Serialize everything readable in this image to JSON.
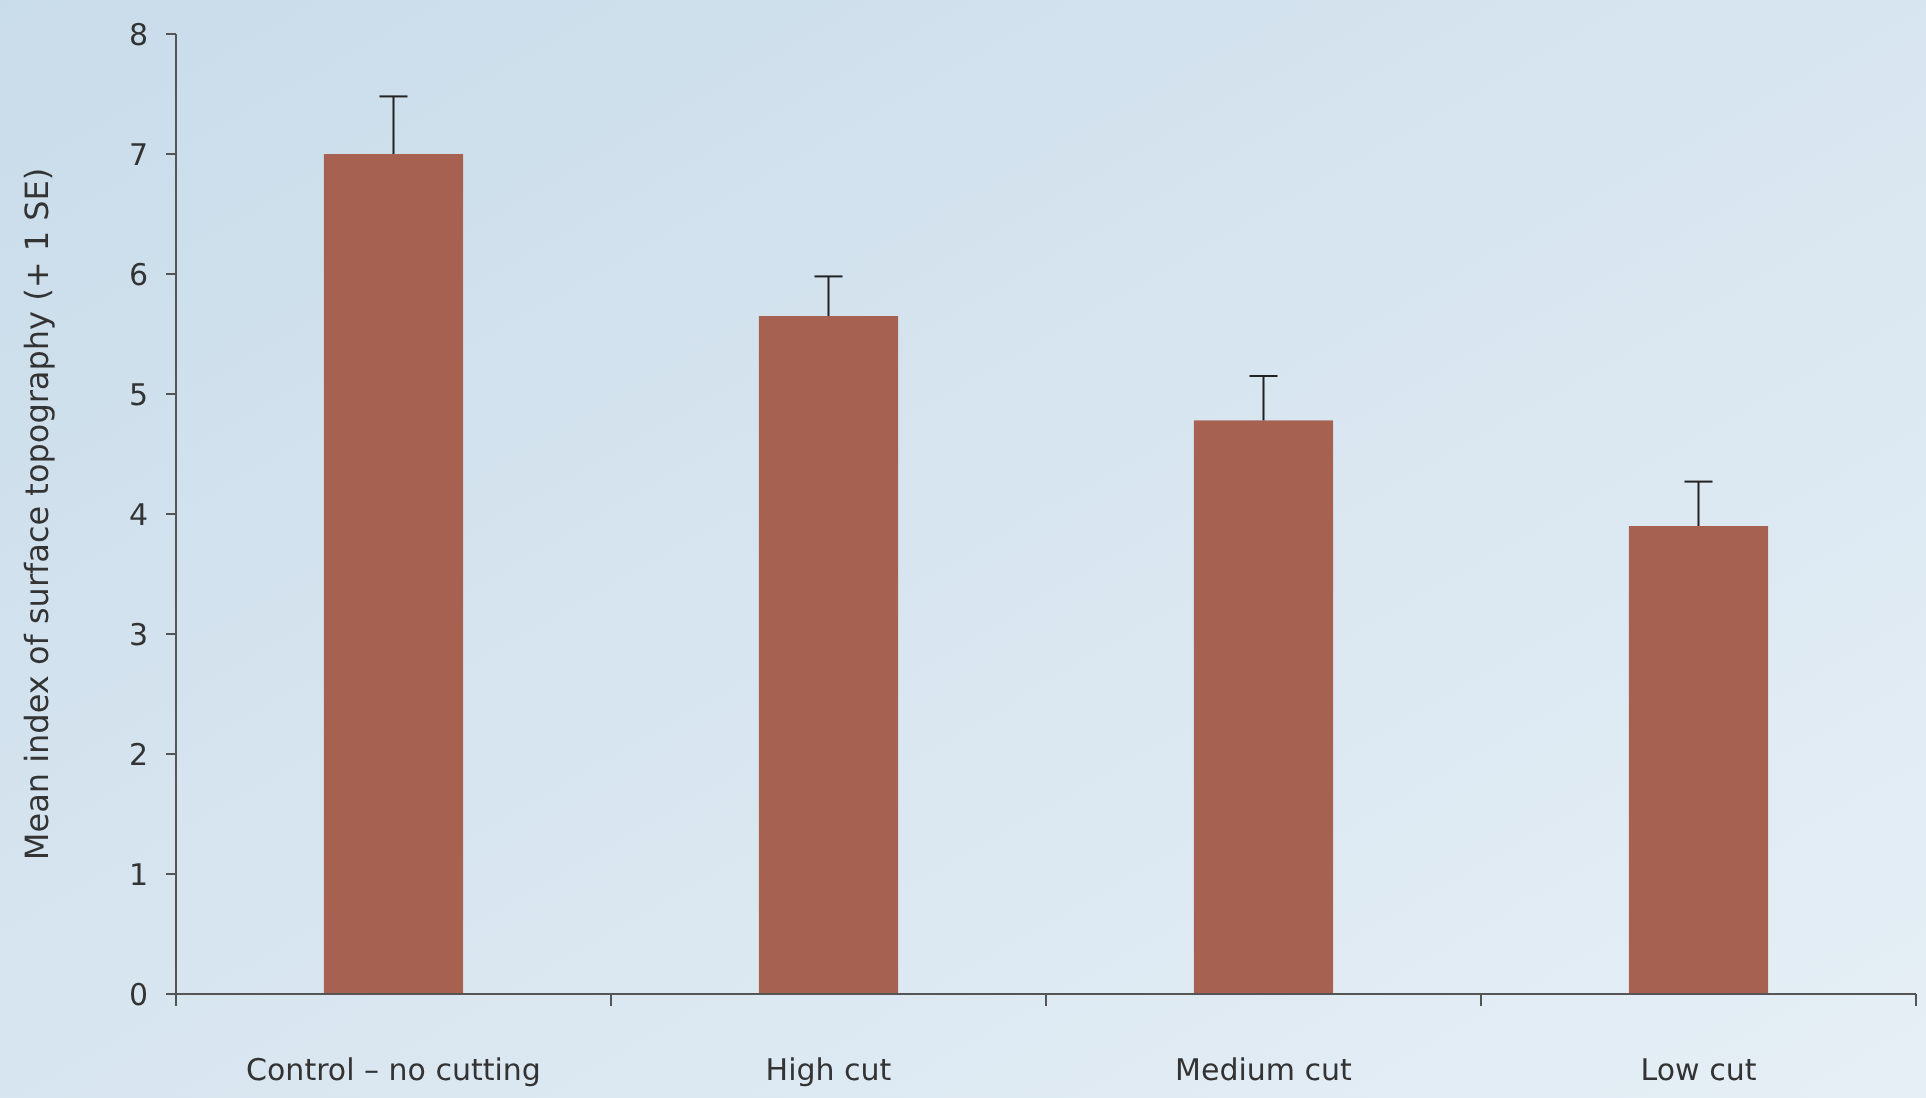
{
  "chart_data": {
    "type": "bar",
    "ylabel": "Mean index of surface topography (+ 1 SE)",
    "categories": [
      "Control – no cutting",
      "High cut",
      "Medium cut",
      "Low cut"
    ],
    "values": [
      7.0,
      5.65,
      4.78,
      3.9
    ],
    "errors": [
      [
        7.0,
        7.48
      ],
      [
        5.65,
        5.98
      ],
      [
        4.78,
        5.15
      ],
      [
        3.9,
        4.27
      ]
    ],
    "color": "#a66150",
    "ylim": [
      0,
      8
    ],
    "yticks": [
      0,
      1,
      2,
      3,
      4,
      5,
      6,
      7,
      8
    ],
    "grid": false
  }
}
